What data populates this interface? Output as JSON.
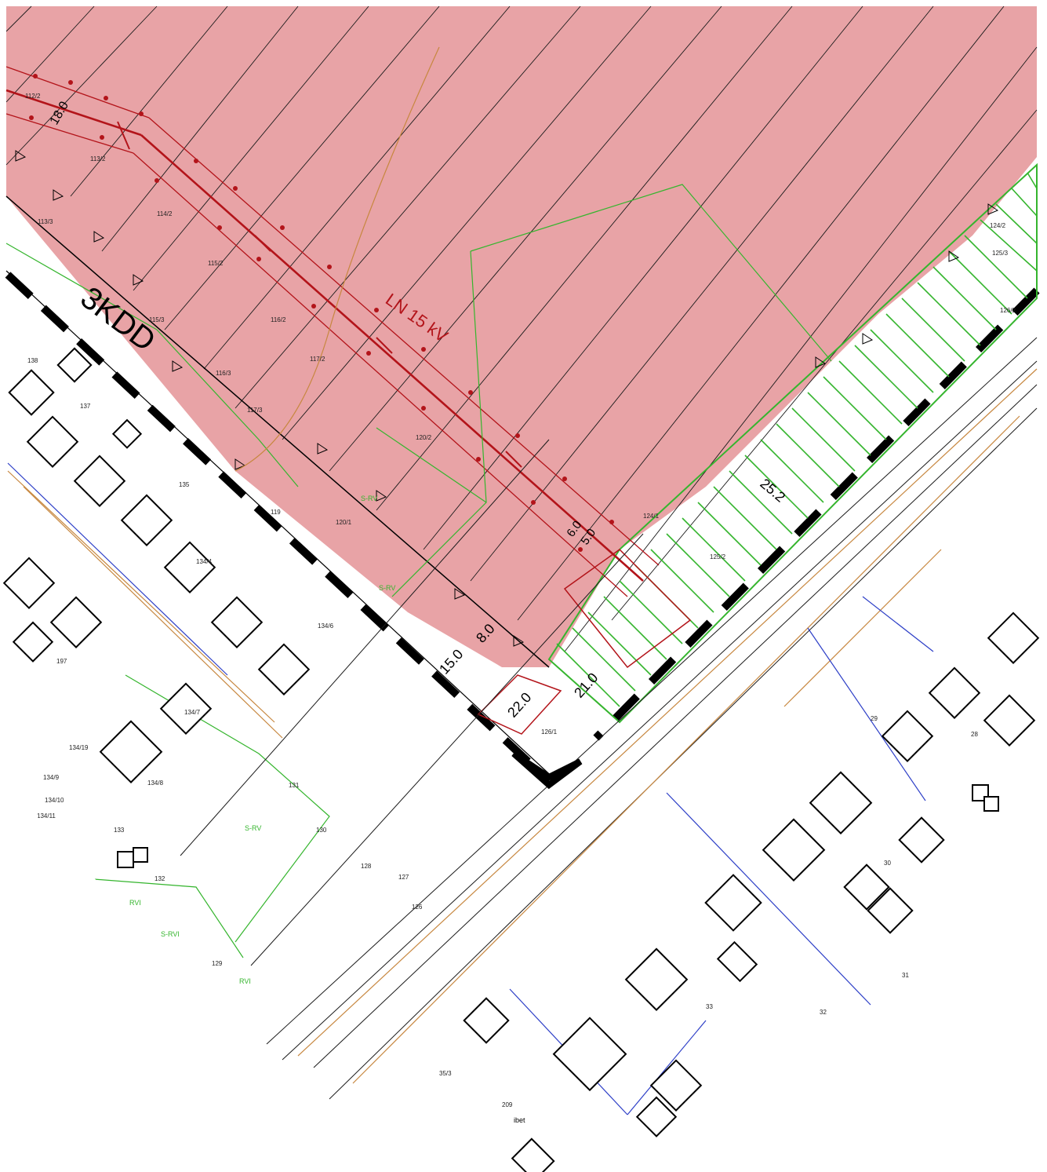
{
  "map": {
    "road_label": "3KDD",
    "power_line_label": "LN 15 kV",
    "dimensions": [
      "18.0",
      "25.2",
      "6.0",
      "5.0",
      "8.0",
      "15.0",
      "21.0",
      "22.0"
    ],
    "zone_labels": [
      "S-RV",
      "S-RV",
      "S-RV",
      "RVI",
      "S-RVI",
      "RVI"
    ],
    "street_label": "ibet"
  },
  "parcels": {
    "north": [
      "112/2",
      "113/2",
      "113/3",
      "114/2",
      "115/2",
      "115/3",
      "116/2",
      "116/3",
      "117/2",
      "117/3",
      "120/2",
      "120/1",
      "119",
      "124/1",
      "124/2",
      "125/2",
      "125/3",
      "126/2",
      "126/1"
    ],
    "west": [
      "138",
      "137",
      "135",
      "134/4",
      "134/6",
      "134/7",
      "134/9",
      "134/10",
      "134/11",
      "134/8",
      "134/19",
      "133",
      "132",
      "131",
      "130",
      "129",
      "128",
      "127",
      "126",
      "197"
    ],
    "south": [
      "29",
      "28",
      "30",
      "31",
      "32",
      "33",
      "209",
      "35/3"
    ]
  },
  "colors": {
    "restricted_zone": "#e8a3a6",
    "power_line": "#b3141a",
    "green_zone": "#35b52e",
    "gas": "#c7873f",
    "water": "#2d3fc7",
    "road_boundary": "#000000"
  }
}
